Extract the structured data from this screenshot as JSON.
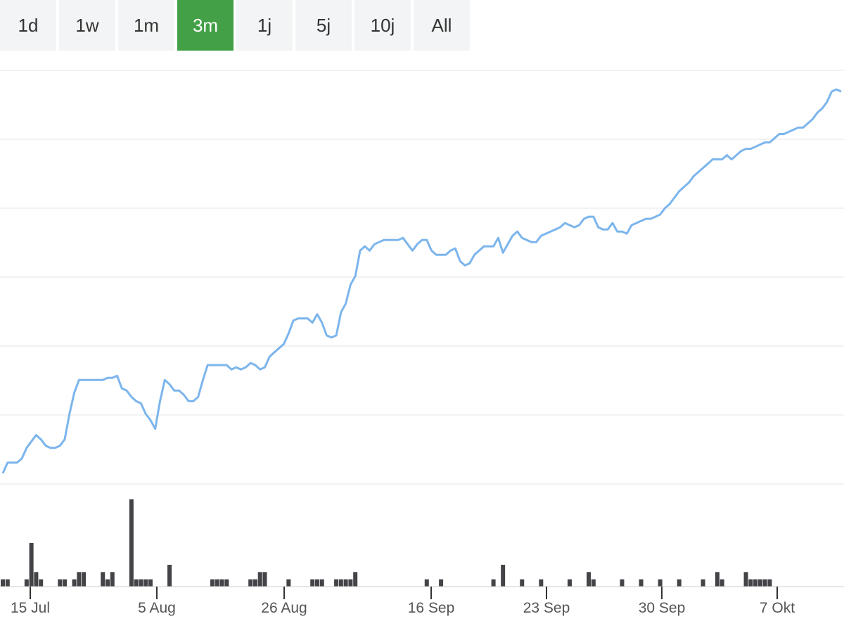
{
  "range_selector": {
    "buttons": [
      "1d",
      "1w",
      "1m",
      "3m",
      "1j",
      "5j",
      "10j",
      "All"
    ],
    "active": "3m",
    "active_color": "#43a047"
  },
  "chart_data": {
    "type": "line",
    "title": "",
    "xlabel": "",
    "ylabel": "",
    "grid": true,
    "legend": "none",
    "x_ticks": [
      "15 Jul",
      "5 Aug",
      "26 Aug",
      "16 Sep",
      "23 Sep",
      "30 Sep",
      "7 Okt"
    ],
    "x_range": [
      "2024-07-11",
      "2024-10-10"
    ],
    "series": [
      {
        "color": "#7cb5ec",
        "values": [
          18.5,
          19.0,
          19.0,
          19.0,
          19.2,
          19.7,
          20.0,
          20.3,
          20.1,
          19.8,
          19.7,
          19.7,
          19.8,
          20.1,
          21.3,
          22.3,
          22.9,
          22.9,
          22.9,
          22.9,
          22.9,
          22.9,
          23.0,
          23.0,
          23.1,
          22.5,
          22.4,
          22.1,
          21.9,
          21.8,
          21.3,
          21.0,
          20.6,
          21.9,
          22.9,
          22.7,
          22.4,
          22.4,
          22.2,
          21.9,
          21.9,
          22.1,
          22.9,
          23.6,
          23.6,
          23.6,
          23.6,
          23.6,
          23.4,
          23.5,
          23.4,
          23.5,
          23.7,
          23.6,
          23.4,
          23.5,
          24.0,
          24.2,
          24.4,
          24.6,
          25.1,
          25.7,
          25.8,
          25.8,
          25.8,
          25.6,
          26.0,
          25.6,
          25.0,
          24.9,
          25.0,
          26.1,
          26.5,
          27.4,
          27.8,
          29.0,
          29.2,
          29.0,
          29.3,
          29.4,
          29.5,
          29.5,
          29.5,
          29.5,
          29.6,
          29.3,
          29.0,
          29.3,
          29.5,
          29.5,
          29.0,
          28.8,
          28.8,
          28.8,
          29.0,
          29.1,
          28.5,
          28.3,
          28.4,
          28.8,
          29.0,
          29.2,
          29.2,
          29.2,
          29.6,
          28.9,
          29.3,
          29.7,
          29.9,
          29.6,
          29.5,
          29.4,
          29.4,
          29.7,
          29.8,
          29.9,
          30.0,
          30.1,
          30.3,
          30.2,
          30.1,
          30.2,
          30.5,
          30.6,
          30.6,
          30.1,
          30.0,
          30.0,
          30.3,
          29.9,
          29.9,
          29.8,
          30.2,
          30.3,
          30.4,
          30.5,
          30.5,
          30.6,
          30.7,
          31.0,
          31.2,
          31.5,
          31.8,
          32.0,
          32.2,
          32.5,
          32.7,
          32.9,
          33.1,
          33.3,
          33.3,
          33.3,
          33.5,
          33.3,
          33.5,
          33.7,
          33.8,
          33.8,
          33.9,
          34.0,
          34.1,
          34.1,
          34.3,
          34.5,
          34.5,
          34.6,
          34.7,
          34.8,
          34.8,
          35.0,
          35.2,
          35.5,
          35.7,
          36.0,
          36.5,
          36.6,
          36.5
        ]
      }
    ],
    "volume": {
      "color": "#434348",
      "values": [
        1,
        1,
        0,
        0,
        0,
        1,
        6,
        2,
        1,
        0,
        0,
        0,
        1,
        1,
        0,
        1,
        2,
        2,
        0,
        0,
        0,
        2,
        1,
        2,
        0,
        0,
        0,
        12,
        1,
        1,
        1,
        1,
        0,
        0,
        0,
        3,
        0,
        0,
        0,
        0,
        0,
        0,
        0,
        0,
        1,
        1,
        1,
        1,
        0,
        0,
        0,
        0,
        1,
        1,
        2,
        2,
        0,
        0,
        0,
        0,
        1,
        0,
        0,
        0,
        0,
        1,
        1,
        1,
        0,
        0,
        1,
        1,
        1,
        1,
        2,
        0,
        0,
        0,
        0,
        0,
        0,
        0,
        0,
        0,
        0,
        0,
        0,
        0,
        0,
        1,
        0,
        0,
        1,
        0,
        0,
        0,
        0,
        0,
        0,
        0,
        0,
        0,
        0,
        1,
        0,
        3,
        0,
        0,
        0,
        1,
        0,
        0,
        0,
        1,
        0,
        0,
        0,
        0,
        0,
        1,
        0,
        0,
        0,
        2,
        1,
        0,
        0,
        0,
        0,
        0,
        1,
        0,
        0,
        0,
        1,
        0,
        0,
        0,
        1,
        0,
        0,
        0,
        1,
        0,
        0,
        0,
        0,
        1,
        0,
        0,
        2,
        1,
        0,
        0,
        0,
        0,
        2,
        1,
        1,
        1,
        1,
        1
      ]
    }
  }
}
